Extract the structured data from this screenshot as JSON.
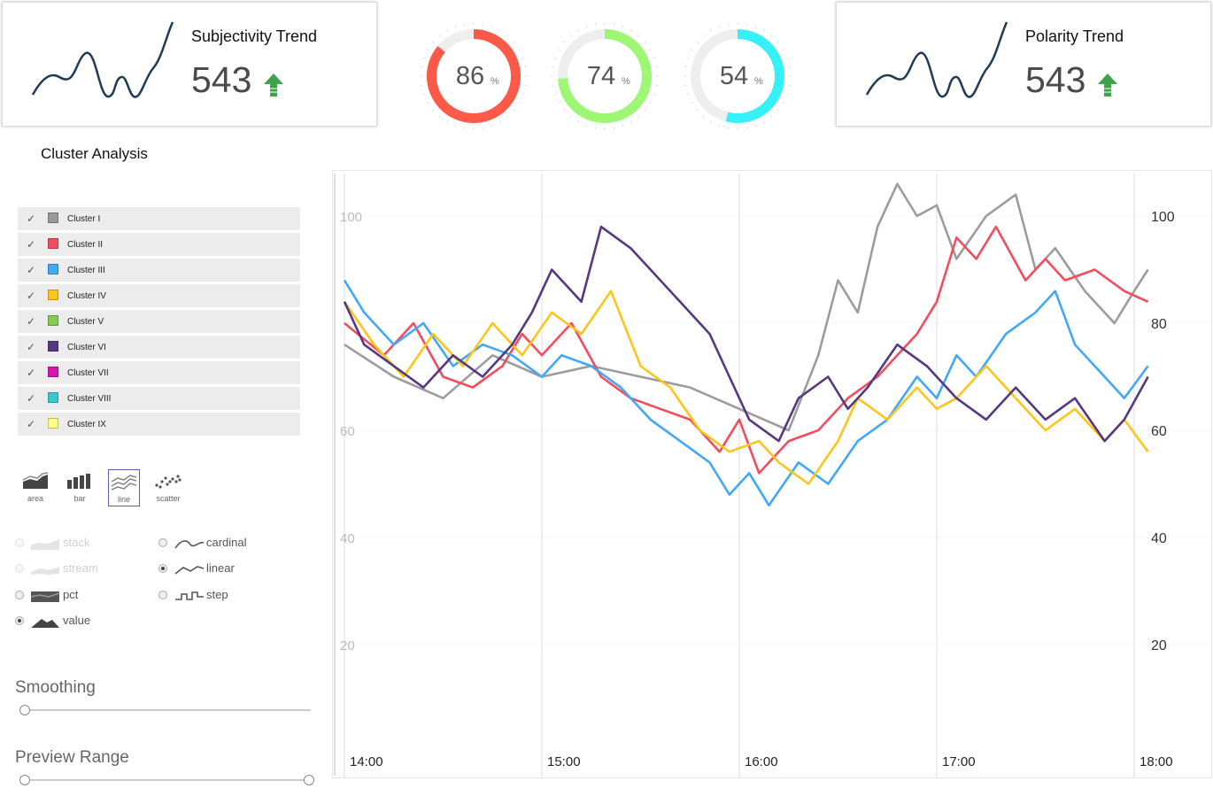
{
  "cards": {
    "subjectivity": {
      "title": "Subjectivity Trend",
      "value": "543",
      "trend": "up-arrow-icon"
    },
    "polarity": {
      "title": "Polarity Trend",
      "value": "543",
      "trend": "up-arrow-icon"
    }
  },
  "gauges": [
    {
      "value": 86,
      "unit": "%",
      "color": "#fa5a47"
    },
    {
      "value": 74,
      "unit": "%",
      "color": "#9df774"
    },
    {
      "value": 54,
      "unit": "%",
      "color": "#36f0f7"
    }
  ],
  "cluster_title": "Cluster Analysis",
  "legend": [
    {
      "label": "Cluster I",
      "color": "#999999"
    },
    {
      "label": "Cluster II",
      "color": "#f34c5f"
    },
    {
      "label": "Cluster III",
      "color": "#41a8f7"
    },
    {
      "label": "Cluster IV",
      "color": "#fbc51c"
    },
    {
      "label": "Cluster V",
      "color": "#84cb54"
    },
    {
      "label": "Cluster VI",
      "color": "#55387f"
    },
    {
      "label": "Cluster VII",
      "color": "#da14ae"
    },
    {
      "label": "Cluster VIII",
      "color": "#3ac8cf"
    },
    {
      "label": "Cluster IX",
      "color": "#fefb87"
    }
  ],
  "renderer_types": {
    "area": "area",
    "bar": "bar",
    "line": "line",
    "scatter": "scatter",
    "selected": "line"
  },
  "offset_options": {
    "stack": "stack",
    "stream": "stream",
    "pct": "pct",
    "value": "value",
    "selected": "value"
  },
  "interpolation_options": {
    "cardinal": "cardinal",
    "linear": "linear",
    "step": "step",
    "selected": "linear"
  },
  "smoothing": {
    "label": "Smoothing"
  },
  "preview_range": {
    "label": "Preview Range"
  },
  "chart_data": {
    "type": "line",
    "ylim": [
      0,
      110
    ],
    "y_ticks": [
      20,
      40,
      60,
      80,
      100
    ],
    "y_ticks_left": [
      "20",
      "40",
      "60",
      "100"
    ],
    "y_ticks_right": [
      "20",
      "40",
      "60",
      "80",
      "100"
    ],
    "x_ticks": [
      "14:00",
      "15:00",
      "16:00",
      "17:00",
      "18:00"
    ],
    "x_range_hours": [
      14.0,
      18.1
    ],
    "series": [
      {
        "color": "#9c9c9c",
        "values": [
          [
            14.0,
            76
          ],
          [
            14.25,
            70
          ],
          [
            14.5,
            66
          ],
          [
            14.75,
            74
          ],
          [
            15.0,
            70
          ],
          [
            15.25,
            72
          ],
          [
            15.5,
            70
          ],
          [
            15.75,
            68
          ],
          [
            16.0,
            64
          ],
          [
            16.25,
            60
          ],
          [
            16.4,
            74
          ],
          [
            16.5,
            88
          ],
          [
            16.6,
            82
          ],
          [
            16.7,
            98
          ],
          [
            16.8,
            106
          ],
          [
            16.9,
            100
          ],
          [
            17.0,
            102
          ],
          [
            17.1,
            92
          ],
          [
            17.25,
            100
          ],
          [
            17.4,
            104
          ],
          [
            17.5,
            90
          ],
          [
            17.6,
            94
          ],
          [
            17.75,
            86
          ],
          [
            17.9,
            80
          ],
          [
            18.0,
            86
          ],
          [
            18.07,
            90
          ]
        ]
      },
      {
        "color": "#f34c5f",
        "values": [
          [
            14.0,
            80
          ],
          [
            14.2,
            74
          ],
          [
            14.35,
            80
          ],
          [
            14.5,
            70
          ],
          [
            14.65,
            68
          ],
          [
            14.8,
            72
          ],
          [
            14.9,
            78
          ],
          [
            15.0,
            74
          ],
          [
            15.15,
            80
          ],
          [
            15.3,
            70
          ],
          [
            15.45,
            66
          ],
          [
            15.6,
            64
          ],
          [
            15.75,
            62
          ],
          [
            15.9,
            56
          ],
          [
            16.0,
            62
          ],
          [
            16.1,
            52
          ],
          [
            16.25,
            58
          ],
          [
            16.4,
            60
          ],
          [
            16.55,
            66
          ],
          [
            16.7,
            70
          ],
          [
            16.8,
            74
          ],
          [
            16.9,
            78
          ],
          [
            17.0,
            84
          ],
          [
            17.1,
            96
          ],
          [
            17.2,
            92
          ],
          [
            17.3,
            98
          ],
          [
            17.45,
            88
          ],
          [
            17.55,
            92
          ],
          [
            17.65,
            88
          ],
          [
            17.8,
            90
          ],
          [
            17.95,
            86
          ],
          [
            18.07,
            84
          ]
        ]
      },
      {
        "color": "#41a8f7",
        "values": [
          [
            14.0,
            88
          ],
          [
            14.1,
            82
          ],
          [
            14.25,
            76
          ],
          [
            14.4,
            80
          ],
          [
            14.55,
            72
          ],
          [
            14.7,
            76
          ],
          [
            14.85,
            74
          ],
          [
            15.0,
            70
          ],
          [
            15.1,
            74
          ],
          [
            15.25,
            72
          ],
          [
            15.4,
            68
          ],
          [
            15.55,
            62
          ],
          [
            15.7,
            58
          ],
          [
            15.85,
            54
          ],
          [
            15.95,
            48
          ],
          [
            16.05,
            52
          ],
          [
            16.15,
            46
          ],
          [
            16.3,
            54
          ],
          [
            16.45,
            50
          ],
          [
            16.6,
            58
          ],
          [
            16.75,
            62
          ],
          [
            16.9,
            70
          ],
          [
            17.0,
            66
          ],
          [
            17.1,
            74
          ],
          [
            17.2,
            70
          ],
          [
            17.35,
            78
          ],
          [
            17.5,
            82
          ],
          [
            17.6,
            86
          ],
          [
            17.7,
            76
          ],
          [
            17.85,
            70
          ],
          [
            17.95,
            66
          ],
          [
            18.07,
            72
          ]
        ]
      },
      {
        "color": "#fbc51c",
        "values": [
          [
            14.0,
            84
          ],
          [
            14.15,
            76
          ],
          [
            14.3,
            70
          ],
          [
            14.45,
            78
          ],
          [
            14.6,
            72
          ],
          [
            14.75,
            80
          ],
          [
            14.9,
            74
          ],
          [
            15.05,
            82
          ],
          [
            15.2,
            78
          ],
          [
            15.35,
            86
          ],
          [
            15.5,
            72
          ],
          [
            15.65,
            68
          ],
          [
            15.8,
            60
          ],
          [
            15.95,
            56
          ],
          [
            16.1,
            58
          ],
          [
            16.2,
            54
          ],
          [
            16.35,
            50
          ],
          [
            16.5,
            58
          ],
          [
            16.6,
            66
          ],
          [
            16.75,
            62
          ],
          [
            16.9,
            68
          ],
          [
            17.0,
            64
          ],
          [
            17.1,
            66
          ],
          [
            17.25,
            72
          ],
          [
            17.4,
            66
          ],
          [
            17.55,
            60
          ],
          [
            17.7,
            64
          ],
          [
            17.85,
            58
          ],
          [
            17.95,
            62
          ],
          [
            18.07,
            56
          ]
        ]
      },
      {
        "color": "#55387f",
        "values": [
          [
            14.0,
            84
          ],
          [
            14.1,
            76
          ],
          [
            14.25,
            72
          ],
          [
            14.4,
            68
          ],
          [
            14.55,
            74
          ],
          [
            14.7,
            70
          ],
          [
            14.85,
            76
          ],
          [
            14.95,
            82
          ],
          [
            15.05,
            90
          ],
          [
            15.2,
            84
          ],
          [
            15.3,
            98
          ],
          [
            15.45,
            94
          ],
          [
            15.55,
            90
          ],
          [
            15.7,
            84
          ],
          [
            15.85,
            78
          ],
          [
            15.95,
            70
          ],
          [
            16.05,
            62
          ],
          [
            16.2,
            58
          ],
          [
            16.3,
            66
          ],
          [
            16.45,
            70
          ],
          [
            16.55,
            64
          ],
          [
            16.65,
            68
          ],
          [
            16.8,
            76
          ],
          [
            16.95,
            72
          ],
          [
            17.1,
            66
          ],
          [
            17.25,
            62
          ],
          [
            17.4,
            68
          ],
          [
            17.55,
            62
          ],
          [
            17.7,
            66
          ],
          [
            17.85,
            58
          ],
          [
            17.95,
            62
          ],
          [
            18.07,
            70
          ]
        ]
      }
    ]
  }
}
